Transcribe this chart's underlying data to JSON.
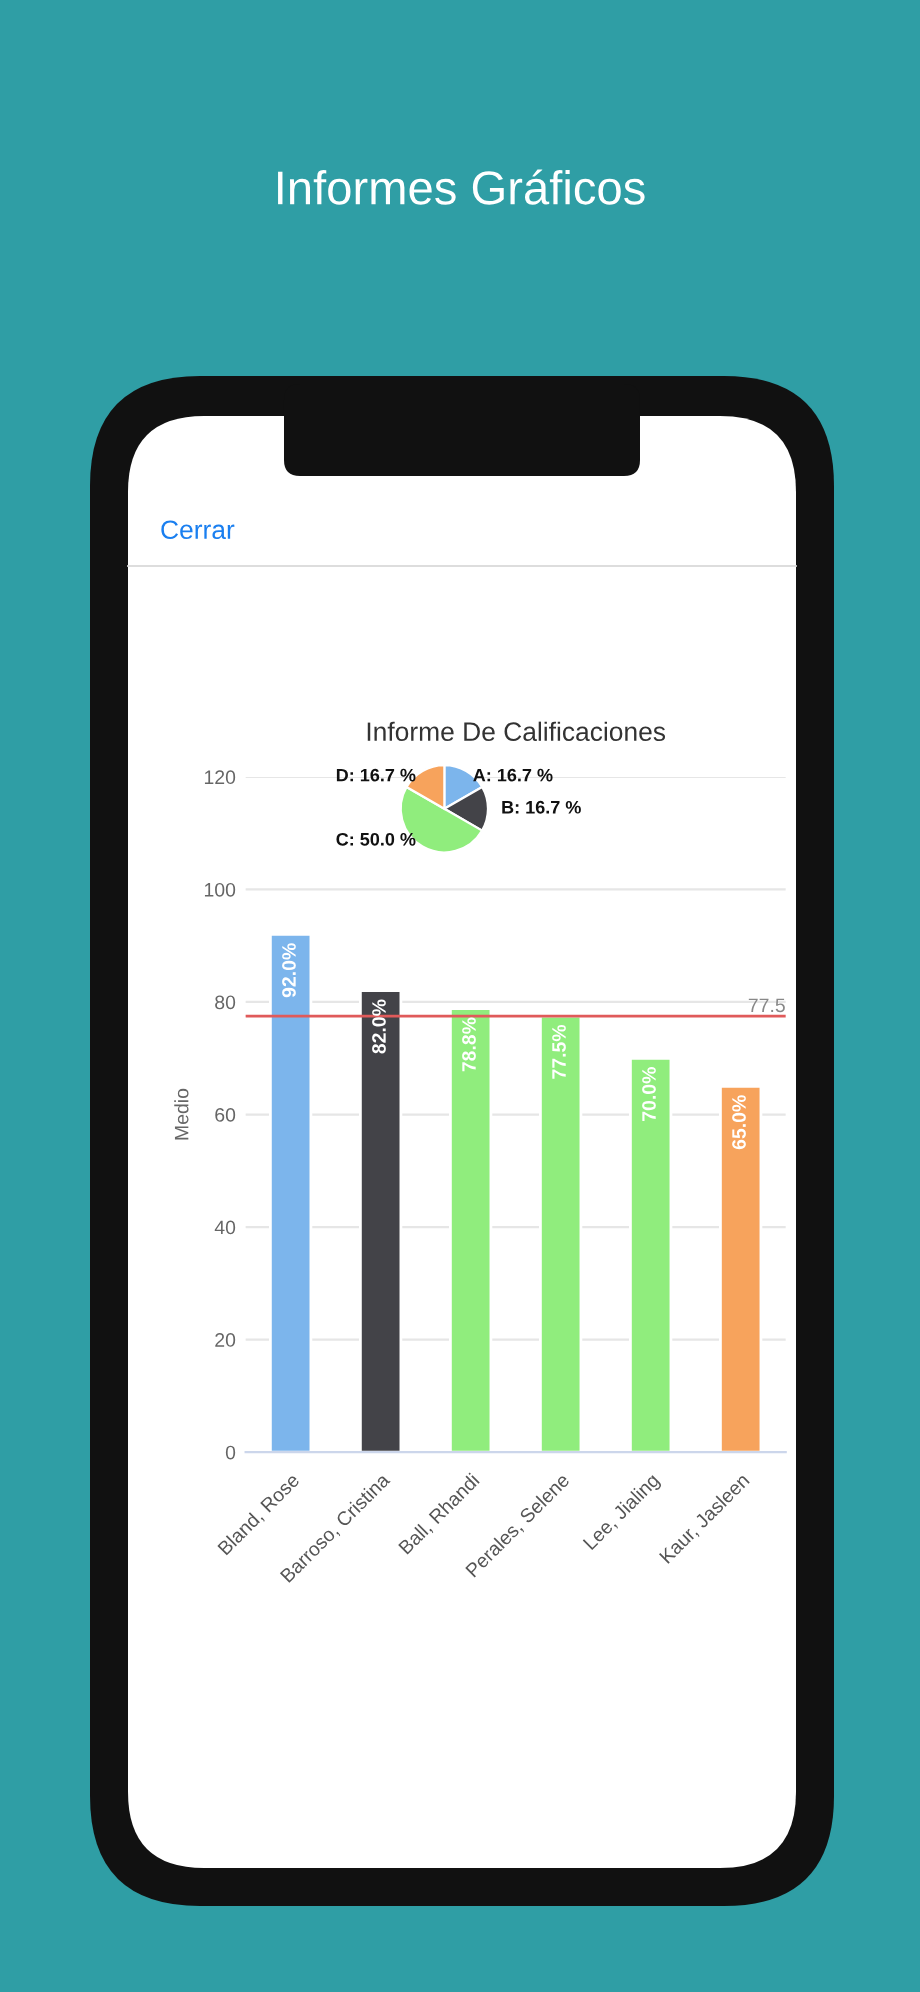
{
  "chart_data": [
    {
      "type": "bar",
      "title": "Informe De Calificaciones",
      "ylabel": "Medio",
      "annotations": [
        "Informes Gráficos",
        "Cerrar"
      ],
      "categories": [
        "Bland, Rose",
        "Barroso, Cristina",
        "Ball, Rhandi",
        "Perales, Selene",
        "Lee, Jialing",
        "Kaur, Jasleen"
      ],
      "values": [
        92,
        82,
        78.8,
        77.5,
        70,
        65
      ],
      "value_labels": [
        "92.0%",
        "82.0%",
        "78.8%",
        "77.5%",
        "70.0%",
        "65.0%"
      ],
      "colors": [
        "#7cb5ec",
        "#434348",
        "#90ed7d",
        "#90ed7d",
        "#90ed7d",
        "#f7a35c"
      ],
      "ylim": [
        0,
        120
      ],
      "yticks": [
        0,
        20,
        40,
        60,
        80,
        100,
        120
      ],
      "grid": "y",
      "ref_lines": [
        {
          "axis": "y",
          "value": 77.5,
          "label": "77.5",
          "color": "#e05a5a"
        }
      ]
    },
    {
      "type": "pie",
      "categories": [
        "A",
        "B",
        "C",
        "D"
      ],
      "values": [
        16.7,
        16.7,
        50.0,
        16.7
      ],
      "value_labels": [
        "16.7 %",
        "16.7 %",
        "50.0 %",
        "16.7 %"
      ],
      "colors": [
        "#7cb5ec",
        "#434348",
        "#90ed7d",
        "#f7a35c"
      ]
    }
  ]
}
